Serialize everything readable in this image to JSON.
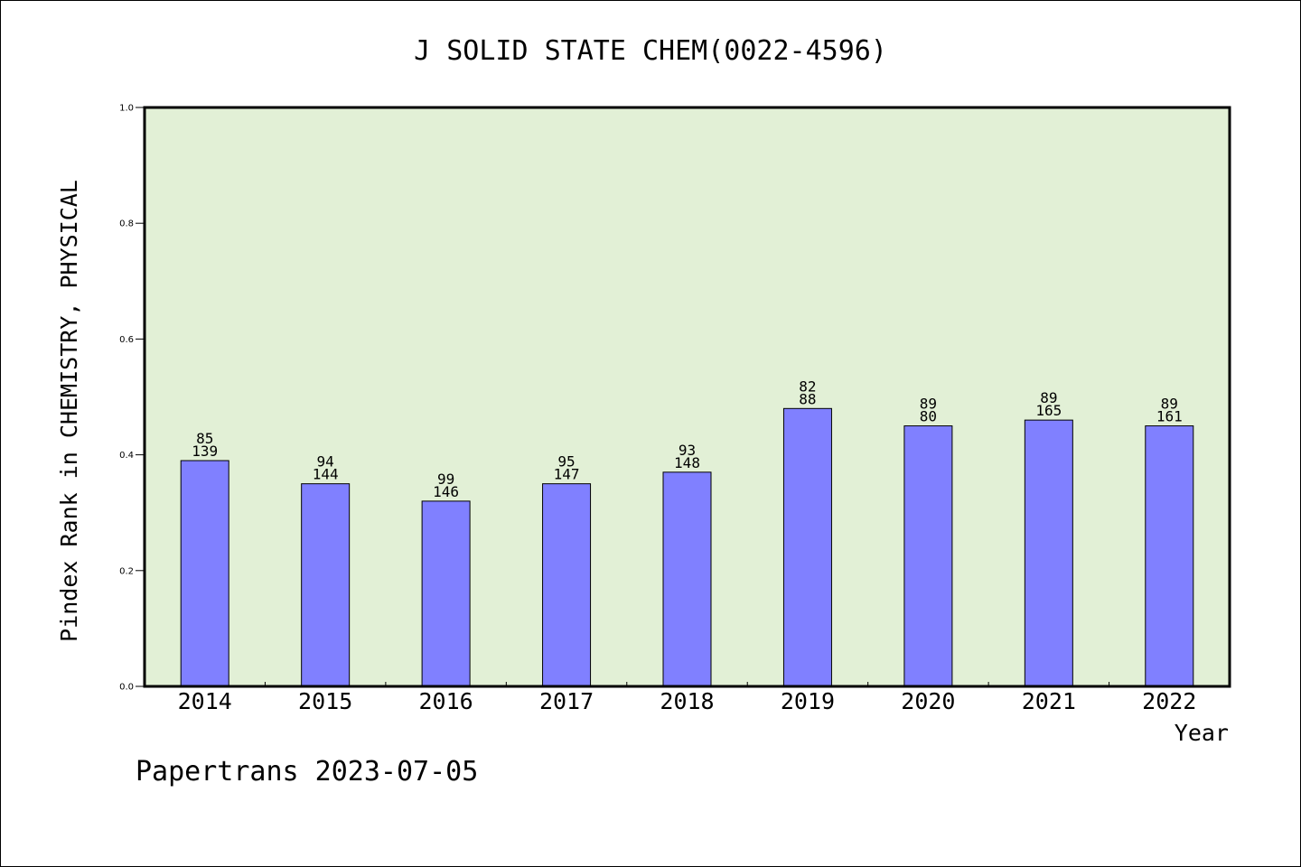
{
  "footer": "Papertrans 2023-07-05",
  "colors": {
    "plot_bg": "#e2f0d6",
    "bar": "#8080ff",
    "frame": "#000000"
  },
  "chart_data": {
    "type": "bar",
    "title": "J SOLID STATE CHEM(0022-4596)",
    "xlabel": "Year",
    "ylabel": "Pindex Rank in CHEMISTRY, PHYSICAL",
    "ylim": [
      0,
      1.0
    ],
    "yticks": [
      "0.0",
      "0.2",
      "0.4",
      "0.6",
      "0.8",
      "1.0"
    ],
    "grid": false,
    "categories": [
      "2014",
      "2015",
      "2016",
      "2017",
      "2018",
      "2019",
      "2020",
      "2021",
      "2022"
    ],
    "values": [
      0.39,
      0.35,
      0.32,
      0.35,
      0.37,
      0.48,
      0.45,
      0.46,
      0.45
    ],
    "labels_top": [
      "85",
      "94",
      "99",
      "95",
      "93",
      "82",
      "89",
      "89",
      "89"
    ],
    "labels_bottom": [
      "139",
      "144",
      "146",
      "147",
      "148",
      "88",
      "80",
      "165",
      "161"
    ]
  }
}
